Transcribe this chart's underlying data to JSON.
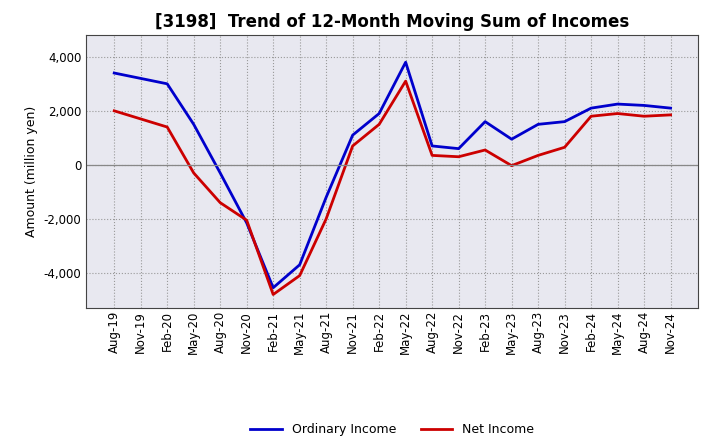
{
  "title": "[3198]  Trend of 12-Month Moving Sum of Incomes",
  "ylabel": "Amount (million yen)",
  "x_labels": [
    "Aug-19",
    "Nov-19",
    "Feb-20",
    "May-20",
    "Aug-20",
    "Nov-20",
    "Feb-21",
    "May-21",
    "Aug-21",
    "Nov-21",
    "Feb-22",
    "May-22",
    "Aug-22",
    "Nov-22",
    "Feb-23",
    "May-23",
    "Aug-23",
    "Nov-23",
    "Feb-24",
    "May-24",
    "Aug-24",
    "Nov-24"
  ],
  "ordinary_income": [
    3400,
    3200,
    3000,
    1500,
    -300,
    -2150,
    -4550,
    -3700,
    -1200,
    1100,
    1900,
    3800,
    700,
    600,
    1600,
    950,
    1500,
    1600,
    2100,
    2250,
    2200,
    2100
  ],
  "net_income": [
    2000,
    1700,
    1400,
    -300,
    -1400,
    -2050,
    -4800,
    -4100,
    -2000,
    700,
    1500,
    3100,
    350,
    300,
    550,
    -30,
    350,
    650,
    1800,
    1900,
    1800,
    1850
  ],
  "ordinary_color": "#0000cc",
  "net_color": "#cc0000",
  "ylim": [
    -5300,
    4800
  ],
  "yticks": [
    -4000,
    -2000,
    0,
    2000,
    4000
  ],
  "background_color": "#ffffff",
  "plot_bg_color": "#e8e8f0",
  "grid_color": "#999999",
  "legend_ordinary": "Ordinary Income",
  "legend_net": "Net Income",
  "line_width": 2.0,
  "title_fontsize": 12,
  "axis_fontsize": 8.5,
  "ylabel_fontsize": 9
}
